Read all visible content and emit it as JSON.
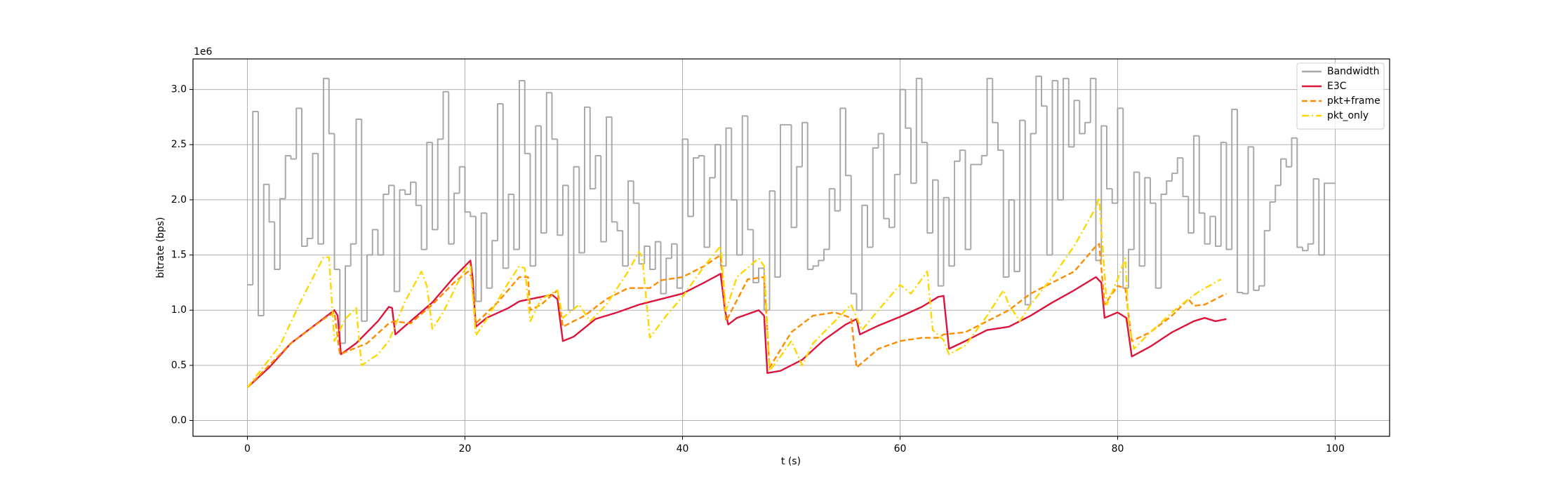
{
  "chart_data": {
    "type": "line",
    "x_label": "t (s)",
    "y_label": "bitrate (bps)",
    "y_scale_label": "1e6",
    "xlim": [
      -5,
      105
    ],
    "ylim": [
      -0.143,
      3.277
    ],
    "xticks": [
      0,
      20,
      40,
      60,
      80,
      100
    ],
    "yticks": [
      {
        "value": 0,
        "label": "0.0"
      },
      0.5,
      {
        "value": 1,
        "label": "1.0"
      },
      1.5,
      {
        "value": 2,
        "label": "2.0"
      },
      2.5,
      {
        "value": 3,
        "label": "3.0"
      }
    ],
    "grid": true,
    "legend": "upper right",
    "series": [
      {
        "name": "Bandwidth",
        "color": "#a0a0a0",
        "linestyle": "solid",
        "drawstyle": "steps-post",
        "x": [
          0,
          0.5,
          1,
          1.5,
          2,
          2.5,
          3,
          3.5,
          4,
          4.5,
          5,
          5.5,
          6,
          6.5,
          7,
          7.5,
          8,
          8.5,
          9,
          9.5,
          10,
          10.5,
          11,
          11.5,
          12,
          12.5,
          13,
          13.5,
          14,
          14.5,
          15,
          15.5,
          16,
          16.5,
          17,
          17.5,
          18,
          18.5,
          19,
          19.5,
          20,
          20.5,
          21,
          21.5,
          22,
          22.5,
          23,
          23.5,
          24,
          24.5,
          25,
          25.5,
          26,
          26.5,
          27,
          27.5,
          28,
          28.5,
          29,
          29.5,
          30,
          30.5,
          31,
          31.5,
          32,
          32.5,
          33,
          33.5,
          34,
          34.5,
          35,
          35.5,
          36,
          36.5,
          37,
          37.5,
          38,
          38.5,
          39,
          39.5,
          40,
          40.5,
          41,
          41.5,
          42,
          42.5,
          43,
          43.5,
          44,
          44.5,
          45,
          45.5,
          46,
          46.5,
          47,
          47.5,
          48,
          48.5,
          49,
          49.5,
          50,
          50.5,
          51,
          51.5,
          52,
          52.5,
          53,
          53.5,
          54,
          54.5,
          55,
          55.5,
          56,
          56.5,
          57,
          57.5,
          58,
          58.5,
          59,
          59.5,
          60,
          60.5,
          61,
          61.5,
          62,
          62.5,
          63,
          63.5,
          64,
          64.5,
          65,
          65.5,
          66,
          66.5,
          67,
          67.5,
          68,
          68.5,
          69,
          69.5,
          70,
          70.5,
          71,
          71.5,
          72,
          72.5,
          73,
          73.5,
          74,
          74.5,
          75,
          75.5,
          76,
          76.5,
          77,
          77.5,
          78,
          78.5,
          79,
          79.5,
          80,
          80.5,
          81,
          81.5,
          82,
          82.5,
          83,
          83.5,
          84,
          84.5,
          85,
          85.5,
          86,
          86.5,
          87,
          87.5,
          88,
          88.5,
          89,
          89.5,
          90,
          90.5,
          91,
          91.5,
          92,
          92.5,
          93,
          93.5,
          94,
          94.5,
          95,
          95.5,
          96,
          96.5,
          97,
          97.5,
          98,
          98.5,
          99,
          99.5,
          100
        ],
        "values": [
          1.23,
          2.8,
          0.95,
          2.14,
          1.8,
          1.37,
          2.01,
          2.4,
          2.37,
          2.83,
          1.58,
          1.65,
          2.42,
          1.6,
          3.1,
          2.6,
          1.37,
          0.7,
          1.4,
          1.6,
          2.73,
          0.9,
          1.5,
          1.73,
          1.5,
          2.05,
          2.13,
          1.17,
          2.09,
          2.05,
          2.16,
          1.95,
          1.55,
          2.52,
          1.73,
          2.55,
          2.98,
          1.6,
          2.06,
          2.3,
          1.89,
          1.85,
          1.08,
          1.88,
          1.2,
          1.63,
          2.87,
          1.38,
          2.05,
          1.55,
          3.08,
          2.42,
          1.4,
          2.67,
          1.7,
          2.97,
          2.55,
          1.68,
          2.13,
          1.0,
          2.3,
          1.52,
          2.84,
          2.1,
          2.4,
          1.62,
          2.75,
          1.8,
          1.72,
          1.4,
          2.17,
          1.97,
          1.42,
          1.58,
          1.37,
          1.62,
          1.15,
          1.47,
          1.6,
          1.2,
          2.55,
          1.85,
          2.38,
          2.4,
          1.57,
          2.2,
          2.5,
          1.4,
          2.65,
          2.0,
          1.5,
          2.76,
          1.73,
          1.25,
          1.38,
          1.0,
          2.08,
          1.3,
          2.68,
          2.68,
          1.75,
          2.3,
          2.7,
          1.37,
          1.4,
          1.45,
          1.55,
          2.1,
          1.9,
          2.83,
          2.22,
          1.15,
          1.0,
          1.95,
          1.57,
          2.47,
          2.6,
          1.83,
          1.75,
          2.23,
          3.0,
          2.65,
          2.15,
          3.1,
          2.52,
          1.7,
          2.18,
          1.22,
          2.02,
          1.4,
          2.35,
          2.45,
          1.55,
          2.32,
          2.32,
          2.4,
          3.1,
          2.7,
          2.45,
          1.3,
          2.0,
          1.35,
          2.72,
          1.05,
          2.6,
          3.12,
          2.85,
          1.5,
          3.08,
          2.0,
          3.1,
          2.48,
          2.9,
          2.6,
          2.7,
          3.1,
          1.45,
          2.67,
          2.1,
          1.97,
          2.83,
          1.2,
          1.55,
          2.25,
          1.4,
          2.2,
          1.97,
          1.2,
          2.05,
          2.17,
          2.24,
          2.38,
          2.03,
          1.7,
          2.58,
          1.88,
          1.6,
          1.85,
          1.58,
          2.52,
          1.55,
          2.82,
          1.16,
          1.15,
          2.48,
          1.18,
          1.22,
          1.72,
          1.98,
          2.13,
          2.37,
          2.3,
          2.56,
          1.57,
          1.54,
          1.6,
          2.19,
          1.5,
          2.15,
          2.15,
          2.15
        ]
      },
      {
        "name": "E3C",
        "color": "#dc143c",
        "linestyle": "solid",
        "x": [
          0,
          2,
          4,
          6,
          8,
          8.3,
          8.6,
          10,
          12,
          13,
          13.3,
          13.6,
          15,
          17,
          19,
          20.5,
          20.7,
          21,
          22,
          24,
          25,
          26,
          27,
          28,
          28.5,
          29,
          30,
          32,
          34,
          36,
          38,
          40,
          42,
          43.5,
          43.9,
          44.2,
          45,
          47,
          47.5,
          47.8,
          49,
          51,
          53,
          55,
          56,
          56.3,
          58,
          60,
          62,
          63.5,
          64,
          64.5,
          66,
          68,
          70,
          72,
          74,
          76,
          78,
          78.5,
          78.8,
          80,
          80.8,
          81.3,
          83,
          85,
          87,
          88,
          89,
          90
        ],
        "values": [
          0.3,
          0.48,
          0.7,
          0.85,
          1.0,
          0.95,
          0.6,
          0.7,
          0.9,
          1.03,
          1.02,
          0.78,
          0.9,
          1.07,
          1.3,
          1.45,
          1.3,
          0.85,
          0.93,
          1.02,
          1.08,
          1.1,
          1.12,
          1.14,
          1.1,
          0.72,
          0.76,
          0.92,
          0.98,
          1.05,
          1.1,
          1.15,
          1.25,
          1.33,
          1.0,
          0.87,
          0.93,
          1.0,
          0.95,
          0.43,
          0.45,
          0.55,
          0.73,
          0.87,
          0.92,
          0.78,
          0.86,
          0.94,
          1.03,
          1.12,
          1.13,
          0.65,
          0.72,
          0.82,
          0.85,
          0.95,
          1.07,
          1.18,
          1.3,
          1.25,
          0.93,
          0.98,
          0.93,
          0.58,
          0.67,
          0.8,
          0.9,
          0.93,
          0.9,
          0.92
        ]
      },
      {
        "name": "pkt+frame",
        "color": "#ff8c00",
        "linestyle": "dashed",
        "x": [
          0,
          4,
          7,
          8,
          8.5,
          11,
          13,
          13.5,
          15,
          17,
          19,
          20.3,
          20.6,
          21,
          23,
          25,
          25.8,
          26,
          27,
          28.5,
          29,
          31,
          33,
          35,
          37,
          38,
          40,
          42,
          43.5,
          44,
          46,
          47.5,
          48,
          50,
          52,
          54,
          55.5,
          56,
          58,
          60,
          62,
          63.5,
          64,
          66,
          68,
          70,
          72,
          74,
          76,
          78,
          78.3,
          78.8,
          80,
          80.7,
          81.3,
          83,
          85,
          86.5,
          87,
          88,
          90
        ],
        "values": [
          0.3,
          0.7,
          0.92,
          0.98,
          0.6,
          0.7,
          0.88,
          0.9,
          0.88,
          1.05,
          1.25,
          1.35,
          1.3,
          0.88,
          1.07,
          1.3,
          1.3,
          1.0,
          1.05,
          1.18,
          0.85,
          0.95,
          1.1,
          1.2,
          1.2,
          1.27,
          1.3,
          1.4,
          1.5,
          0.9,
          1.28,
          1.3,
          0.48,
          0.8,
          0.95,
          0.98,
          0.93,
          0.48,
          0.65,
          0.72,
          0.75,
          0.75,
          0.78,
          0.8,
          0.9,
          1.0,
          1.15,
          1.25,
          1.35,
          1.58,
          1.6,
          1.05,
          1.22,
          1.2,
          0.72,
          0.8,
          0.95,
          1.1,
          1.04,
          1.05,
          1.15
        ]
      },
      {
        "name": "pkt_only",
        "color": "#ffd700",
        "linestyle": "dashdot",
        "x": [
          0,
          3,
          5,
          7,
          7.5,
          8,
          9,
          10,
          10.5,
          12,
          13,
          14.5,
          16,
          16.5,
          17,
          18,
          19.5,
          20,
          20.5,
          21,
          22,
          24,
          25,
          25.5,
          26,
          27,
          28.5,
          29,
          30.5,
          31.5,
          33,
          35,
          36,
          36.3,
          37,
          38.5,
          40,
          42,
          43.5,
          44,
          45,
          47,
          47.5,
          48,
          49,
          50,
          51,
          52,
          54,
          55.5,
          56.5,
          58,
          60,
          61,
          62.5,
          63,
          64,
          64.5,
          66,
          68,
          69.5,
          70,
          71,
          72,
          74,
          76,
          78,
          78.3,
          79,
          80,
          80.7,
          81,
          81.5,
          83,
          85,
          86.5,
          87.5,
          89.5
        ],
        "values": [
          0.3,
          0.68,
          1.1,
          1.48,
          1.48,
          0.72,
          0.92,
          1.02,
          0.5,
          0.6,
          0.72,
          1.08,
          1.35,
          1.22,
          0.83,
          0.98,
          1.28,
          1.37,
          1.42,
          0.77,
          0.92,
          1.25,
          1.4,
          1.38,
          0.9,
          1.1,
          1.18,
          0.93,
          1.05,
          0.9,
          1.05,
          1.35,
          1.53,
          1.48,
          0.75,
          0.95,
          1.12,
          1.4,
          1.58,
          1.0,
          1.3,
          1.47,
          1.4,
          0.45,
          0.58,
          0.72,
          0.5,
          0.7,
          0.9,
          1.05,
          0.82,
          1.0,
          1.23,
          1.15,
          1.35,
          0.82,
          0.73,
          0.6,
          0.68,
          0.95,
          1.18,
          1.05,
          0.9,
          1.05,
          1.3,
          1.58,
          1.93,
          2.02,
          1.05,
          1.28,
          1.47,
          0.9,
          0.65,
          0.8,
          0.98,
          1.1,
          1.17,
          1.28
        ]
      }
    ]
  }
}
